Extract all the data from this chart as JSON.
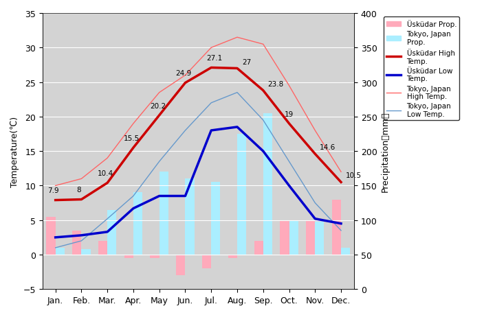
{
  "months": [
    "Jan.",
    "Feb.",
    "Mar.",
    "Apr.",
    "May",
    "Jun.",
    "Jul.",
    "Aug.",
    "Sep.",
    "Oct.",
    "Nov.",
    "Dec."
  ],
  "uskudar_high": [
    7.9,
    8.0,
    10.4,
    15.5,
    20.2,
    24.9,
    27.1,
    27.0,
    23.8,
    19.0,
    14.6,
    10.5
  ],
  "uskudar_low": [
    2.5,
    2.8,
    3.3,
    6.7,
    8.5,
    8.5,
    18.0,
    18.5,
    15.0,
    10.0,
    5.2,
    4.5
  ],
  "tokyo_high": [
    10.0,
    11.0,
    14.0,
    19.0,
    23.5,
    26.0,
    30.0,
    31.5,
    30.5,
    24.5,
    18.0,
    12.0
  ],
  "tokyo_low": [
    1.0,
    2.0,
    5.2,
    8.5,
    13.5,
    18.0,
    22.0,
    23.5,
    19.5,
    13.5,
    7.5,
    3.5
  ],
  "uskudar_prcp": [
    5.5,
    3.5,
    2.0,
    -0.5,
    -0.5,
    -3.0,
    -2.0,
    -0.5,
    2.0,
    5.0,
    5.0,
    8.0
  ],
  "tokyo_prcp": [
    1.0,
    0.8,
    6.5,
    9.0,
    12.0,
    11.0,
    10.5,
    17.5,
    20.5,
    5.0,
    4.8,
    1.0
  ],
  "uskudar_high_labels": [
    "7.9",
    "8",
    "10.4",
    "15.5",
    "20.2",
    "24.9",
    "27.1",
    "27",
    "23.8",
    "19",
    "14.6",
    "10.5"
  ],
  "bg_color": "#d3d3d3",
  "plot_bg_color": "#d3d3d3",
  "uskudar_high_color": "#cc0000",
  "uskudar_low_color": "#0000cc",
  "tokyo_high_color": "#ff6666",
  "tokyo_low_color": "#6699cc",
  "uskudar_prcp_color": "#ffaabb",
  "tokyo_prcp_color": "#aaeeff",
  "title_left": "Temperature(℃)",
  "title_right": "Precipitation（mm）",
  "ylim_temp": [
    -5,
    35
  ],
  "ylim_prcp": [
    0,
    400
  ],
  "yticks_temp": [
    -5,
    0,
    5,
    10,
    15,
    20,
    25,
    30,
    35
  ],
  "yticks_prcp": [
    0,
    50,
    100,
    150,
    200,
    250,
    300,
    350,
    400
  ]
}
